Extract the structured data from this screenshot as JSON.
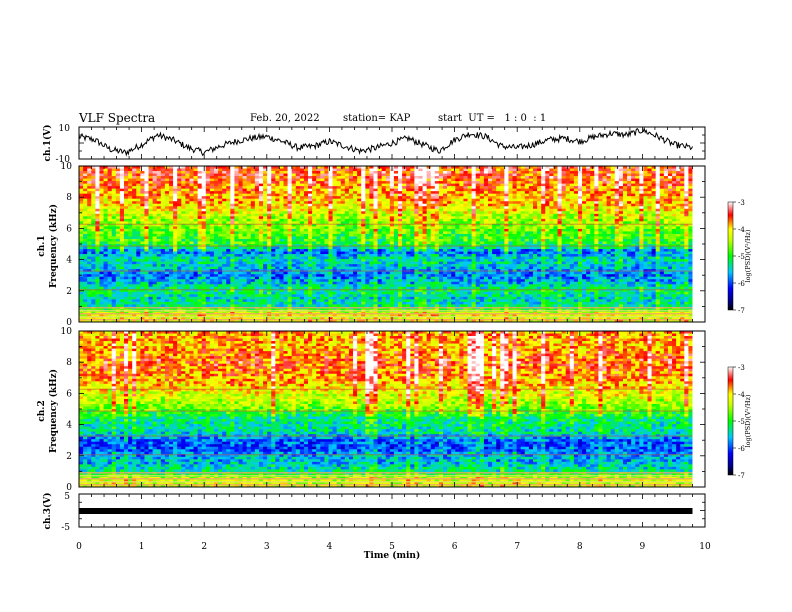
{
  "header": {
    "title": "VLF Spectra",
    "date": "Feb. 20, 2022",
    "station": "station= KAP",
    "start": "start  UT =   1 : 0  : 1"
  },
  "chart_data": [
    {
      "type": "line",
      "panel": "ch1-waveform",
      "ylabel": "ch.1(V)",
      "ylim": [
        -10,
        10
      ],
      "yticks": [
        "10",
        "-10"
      ],
      "xlim": [
        0,
        10
      ],
      "series": [
        {
          "x": [
            0,
            0.25,
            0.5,
            0.75,
            1,
            1.25,
            1.5,
            1.75,
            2,
            2.25,
            2.5,
            2.75,
            3,
            3.25,
            3.5,
            3.75,
            4,
            4.25,
            4.5,
            4.75,
            5,
            5.25,
            5.5,
            5.75,
            6,
            6.25,
            6.5,
            6.75,
            7,
            7.25,
            7.5,
            7.75,
            8,
            8.25,
            8.5,
            8.75,
            9,
            9.25,
            9.5,
            9.8
          ],
          "y": [
            4,
            2,
            -4,
            -6,
            -1,
            5,
            2,
            -3,
            -6,
            -2,
            1,
            3,
            4,
            1,
            -3,
            -2,
            1,
            -2,
            -5,
            -3,
            0,
            3,
            -1,
            -5,
            2,
            6,
            4,
            -2,
            -3,
            -1,
            2,
            3,
            1,
            4,
            6,
            5,
            8,
            4,
            -1,
            -3
          ]
        }
      ]
    },
    {
      "type": "heatmap",
      "panel": "ch1-spectrogram",
      "ylabel": "ch.1\nFrequency (kHz)",
      "ylim": [
        0,
        10
      ],
      "yticks": [
        "0",
        "2",
        "4",
        "6",
        "8",
        "10"
      ],
      "xlim": [
        0,
        10
      ],
      "colorbar": {
        "label": "log(PSD)(V²/Hz)",
        "range": [
          -7,
          -3
        ],
        "ticks": [
          "-3",
          "-4",
          "-5",
          "-6",
          "-7"
        ]
      },
      "freq_kHz": [
        0.5,
        1,
        1.5,
        2,
        2.5,
        3,
        3.5,
        4,
        4.5,
        5,
        5.5,
        6,
        6.5,
        7,
        7.5,
        8,
        8.5,
        9,
        9.5,
        10
      ],
      "mean_log_psd": [
        -4.2,
        -5.3,
        -5.5,
        -5.2,
        -5.6,
        -5.9,
        -5.6,
        -5.4,
        -5.9,
        -5.0,
        -4.9,
        -4.7,
        -4.5,
        -4.3,
        -4.0,
        -3.9,
        -3.8,
        -3.6,
        -3.5,
        -3.5
      ]
    },
    {
      "type": "heatmap",
      "panel": "ch2-spectrogram",
      "ylabel": "ch.2\nFrequency (kHz)",
      "ylim": [
        0,
        10
      ],
      "yticks": [
        "0",
        "2",
        "4",
        "6",
        "8",
        "10"
      ],
      "xlim": [
        0,
        10
      ],
      "colorbar": {
        "label": "log(PSD)(V²/Hz)",
        "range": [
          -7,
          -3
        ],
        "ticks": [
          "-3",
          "-4",
          "-5",
          "-6",
          "-7"
        ]
      },
      "freq_kHz": [
        0.5,
        1,
        1.5,
        2,
        2.5,
        3,
        3.5,
        4,
        4.5,
        5,
        5.5,
        6,
        6.5,
        7,
        7.5,
        8,
        8.5,
        9,
        9.5,
        10
      ],
      "mean_log_psd": [
        -4.3,
        -5.3,
        -5.6,
        -5.7,
        -6.0,
        -5.9,
        -5.4,
        -5.3,
        -5.2,
        -4.7,
        -4.4,
        -4.2,
        -4.0,
        -3.8,
        -3.7,
        -3.6,
        -3.7,
        -3.9,
        -3.8,
        -3.9
      ]
    },
    {
      "type": "line",
      "panel": "ch3-waveform",
      "ylabel": "ch.3(V)",
      "ylim": [
        -5,
        5
      ],
      "yticks": [
        "5",
        "-5"
      ],
      "xlabel": "Time  (min)",
      "xlim": [
        0,
        10
      ],
      "xticks": [
        "0",
        "1",
        "2",
        "3",
        "4",
        "5",
        "6",
        "7",
        "8",
        "9",
        "10"
      ],
      "series": [
        {
          "x": [
            0,
            9.8
          ],
          "y": [
            0,
            0
          ]
        }
      ]
    }
  ]
}
